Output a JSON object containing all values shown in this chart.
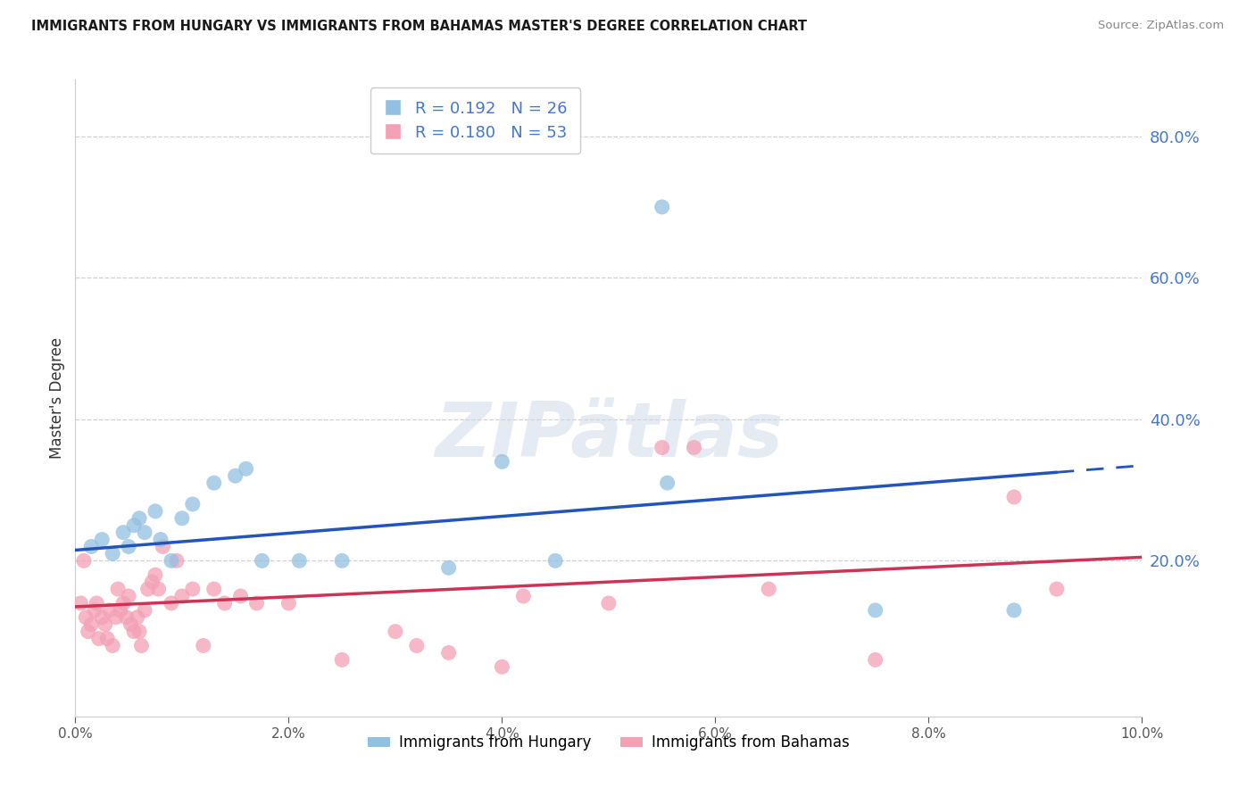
{
  "title": "IMMIGRANTS FROM HUNGARY VS IMMIGRANTS FROM BAHAMAS MASTER'S DEGREE CORRELATION CHART",
  "source": "Source: ZipAtlas.com",
  "ylabel": "Master's Degree",
  "xlim": [
    0.0,
    10.0
  ],
  "ylim": [
    -2.0,
    88.0
  ],
  "right_yticks": [
    20.0,
    40.0,
    60.0,
    80.0
  ],
  "legend_r1": "0.192",
  "legend_n1": "26",
  "legend_r2": "0.180",
  "legend_n2": "53",
  "color_hungary": "#92C0E0",
  "color_bahamas": "#F4A0B5",
  "color_trend_hungary": "#2255BB",
  "color_trend_bahamas": "#CC3355",
  "color_right_axis": "#4477CC",
  "hungary_x": [
    0.15,
    0.25,
    0.35,
    0.45,
    0.5,
    0.55,
    0.6,
    0.65,
    0.75,
    0.8,
    0.9,
    1.0,
    1.1,
    1.3,
    1.5,
    1.6,
    1.75,
    2.1,
    2.5,
    3.5,
    4.0,
    4.5,
    5.5,
    5.55,
    7.5,
    8.8
  ],
  "hungary_y": [
    22,
    23,
    21,
    24,
    22,
    25,
    26,
    24,
    27,
    23,
    20,
    26,
    28,
    31,
    32,
    33,
    20,
    20,
    20,
    19,
    34,
    20,
    70,
    31,
    13,
    13
  ],
  "bahamas_x": [
    0.05,
    0.08,
    0.1,
    0.12,
    0.15,
    0.18,
    0.2,
    0.22,
    0.25,
    0.28,
    0.3,
    0.32,
    0.35,
    0.38,
    0.4,
    0.42,
    0.45,
    0.48,
    0.5,
    0.52,
    0.55,
    0.58,
    0.6,
    0.62,
    0.65,
    0.68,
    0.72,
    0.75,
    0.78,
    0.82,
    0.9,
    0.95,
    1.0,
    1.1,
    1.2,
    1.3,
    1.4,
    1.55,
    1.7,
    2.0,
    2.5,
    3.0,
    3.2,
    3.5,
    4.0,
    4.2,
    5.0,
    5.5,
    5.8,
    6.5,
    7.5,
    8.8,
    9.2
  ],
  "bahamas_y": [
    14,
    20,
    12,
    10,
    11,
    13,
    14,
    9,
    12,
    11,
    9,
    13,
    8,
    12,
    16,
    13,
    14,
    12,
    15,
    11,
    10,
    12,
    10,
    8,
    13,
    16,
    17,
    18,
    16,
    22,
    14,
    20,
    15,
    16,
    8,
    16,
    14,
    15,
    14,
    14,
    6,
    10,
    8,
    7,
    5,
    15,
    14,
    36,
    36,
    16,
    6,
    29,
    16
  ],
  "hungary_trend_x0": 0.0,
  "hungary_trend_y0": 21.5,
  "hungary_trend_x1": 9.2,
  "hungary_trend_y1": 32.5,
  "hungary_solid_end": 9.2,
  "hungary_dash_end": 10.0,
  "bahamas_trend_x0": 0.0,
  "bahamas_trend_y0": 13.5,
  "bahamas_trend_x1": 10.0,
  "bahamas_trend_y1": 20.5
}
